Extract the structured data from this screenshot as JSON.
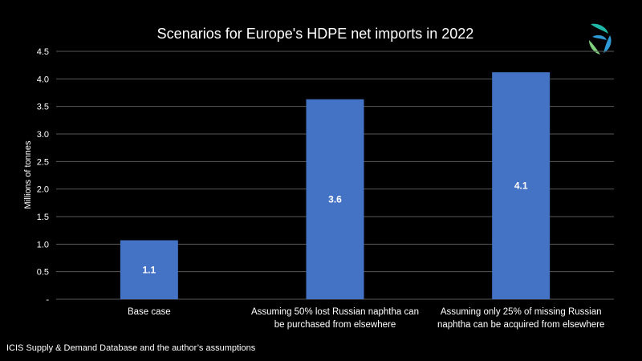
{
  "chart_data": {
    "type": "bar",
    "title": "Scenarios for Europe's HDPE net imports in 2022",
    "ylabel": "Millions of tonnes",
    "xlabel": "",
    "categories": [
      [
        "Base case"
      ],
      [
        "Assuming 50% lost Russian naphtha can",
        "be purchased from elsewhere"
      ],
      [
        "Assuming only 25% of missing Russian",
        "naphtha can be acquired from elsewhere"
      ]
    ],
    "values": [
      1.07,
      3.63,
      4.12
    ],
    "data_labels": [
      "1.1",
      "3.6",
      "4.1"
    ],
    "ylim": [
      0,
      4.5
    ],
    "yticks": [
      "-",
      "0.5",
      "1.0",
      "1.5",
      "2.0",
      "2.5",
      "3.0",
      "3.5",
      "4.0",
      "4.5"
    ],
    "grid": true,
    "legend": "none",
    "bar_color": "#4472c4"
  },
  "source_note": "ICIS Supply  & Demand Database and the author’s assumptions",
  "logo": {
    "icon": "icis-swirl-logo-icon",
    "colors": [
      "#1fb8a6",
      "#2f9bd6",
      "#7ed37a"
    ]
  }
}
